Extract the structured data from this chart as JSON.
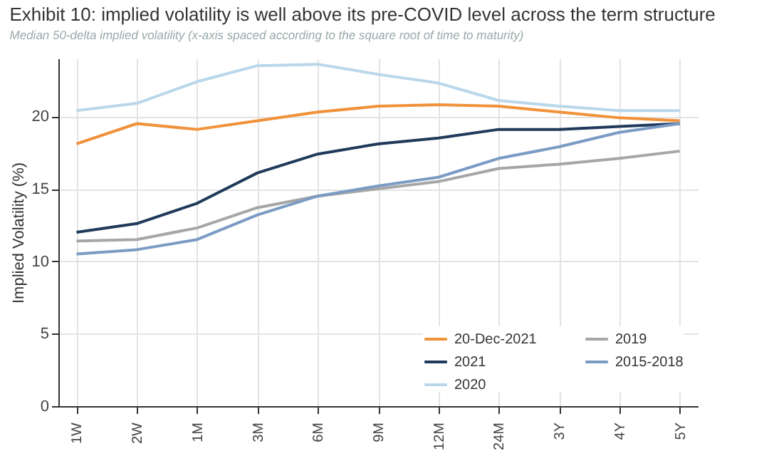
{
  "chart_data": {
    "type": "line",
    "title": "Exhibit 10: implied volatility is well above its pre-COVID level across the term structure",
    "subtitle": "Median 50-delta implied volatility (x-axis spaced according to the square root of time to maturity)",
    "ylabel": "Implied Volatility (%)",
    "categories": [
      "1W",
      "2W",
      "1M",
      "3M",
      "6M",
      "9M",
      "12M",
      "24M",
      "3Y",
      "4Y",
      "5Y"
    ],
    "ylim": [
      0,
      24
    ],
    "yticks": [
      0,
      5,
      10,
      15,
      20
    ],
    "series": [
      {
        "name": "20-Dec-2021",
        "color": "#f0923a",
        "values": [
          18.1,
          19.5,
          19.1,
          19.7,
          20.3,
          20.7,
          20.8,
          20.7,
          20.3,
          19.9,
          19.7
        ]
      },
      {
        "name": "2021",
        "color": "#1f3a5a",
        "values": [
          12.0,
          12.6,
          14.0,
          16.1,
          17.4,
          18.1,
          18.5,
          19.1,
          19.1,
          19.3,
          19.5
        ]
      },
      {
        "name": "2020",
        "color": "#b9d7ea",
        "values": [
          20.4,
          20.9,
          22.4,
          23.5,
          23.6,
          22.9,
          22.3,
          21.1,
          20.7,
          20.4,
          20.4
        ]
      },
      {
        "name": "2019",
        "color": "#a6a6a6",
        "values": [
          11.4,
          11.5,
          12.3,
          13.7,
          14.5,
          15.0,
          15.5,
          16.4,
          16.7,
          17.1,
          17.6
        ]
      },
      {
        "name": "2015-2018",
        "color": "#7b9bc4",
        "values": [
          10.5,
          10.8,
          11.5,
          13.2,
          14.5,
          15.2,
          15.8,
          17.1,
          17.9,
          18.9,
          19.5
        ]
      }
    ],
    "grid": true,
    "legend": "bottom right",
    "line_style": "solid",
    "marker": "none"
  }
}
